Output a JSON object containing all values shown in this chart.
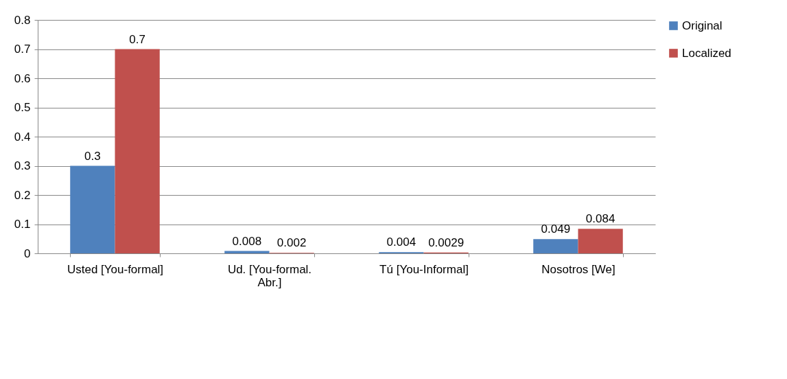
{
  "chart_data": {
    "type": "bar",
    "categories": [
      "Usted [You-formal]",
      "Ud. [You-formal. Abr.]",
      "Tú [You-Informal]",
      "Nosotros [We]"
    ],
    "series": [
      {
        "name": "Original",
        "color": "#4f81bd",
        "values": [
          0.3,
          0.008,
          0.004,
          0.049
        ]
      },
      {
        "name": "Localized",
        "color": "#c0504d",
        "values": [
          0.7,
          0.002,
          0.0029,
          0.084
        ]
      }
    ],
    "ylim": [
      0,
      0.8
    ],
    "yticks": [
      0,
      0.1,
      0.2,
      0.3,
      0.4,
      0.5,
      0.6,
      0.7,
      0.8
    ],
    "grid": "y",
    "legend": "right",
    "data_labels": true
  }
}
